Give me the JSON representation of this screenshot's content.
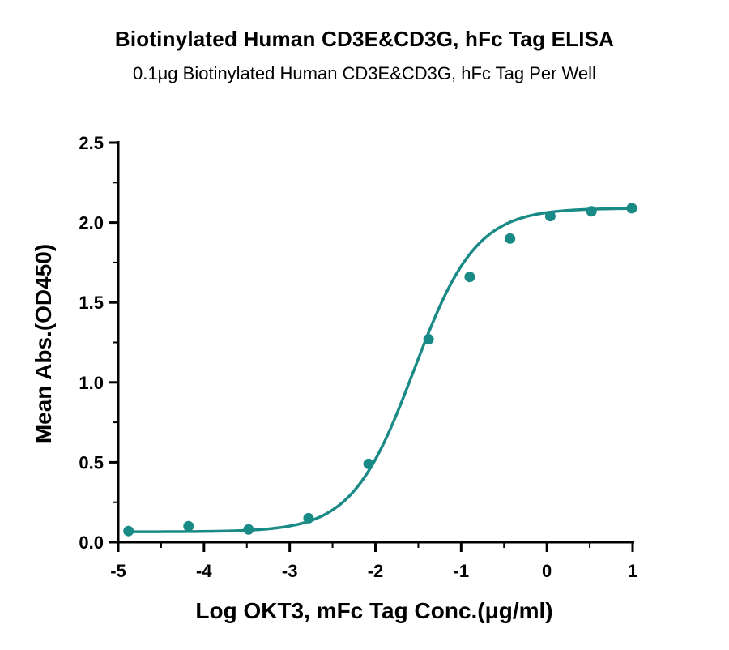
{
  "chart_data": {
    "type": "scatter",
    "title": "Biotinylated Human CD3E&CD3G, hFc Tag ELISA",
    "subtitle": "0.1μg Biotinylated Human CD3E&CD3G, hFc Tag Per Well",
    "xlabel": "Log OKT3, mFc Tag Conc.(μg/ml)",
    "ylabel": "Mean Abs.(OD450)",
    "xlim": [
      -5,
      1
    ],
    "ylim": [
      0,
      2.5
    ],
    "xticks": [
      "-5",
      "-4",
      "-3",
      "-2",
      "-1",
      "0",
      "1"
    ],
    "yticks": [
      "0.0",
      "0.5",
      "1.0",
      "1.5",
      "2.0",
      "2.5"
    ],
    "grid": false,
    "color": "#1a8a86",
    "series": [
      {
        "x": [
          -4.88,
          -4.18,
          -3.48,
          -2.78,
          -2.08,
          -1.38,
          -0.9,
          -0.43,
          0.04,
          0.52,
          0.99
        ],
        "values": [
          0.07,
          0.1,
          0.08,
          0.15,
          0.49,
          1.27,
          1.66,
          1.9,
          2.04,
          2.07,
          2.09
        ],
        "fit": {
          "model": "4PL",
          "bottom": 0.065,
          "top": 2.09,
          "logEC50": -1.55,
          "hill": 1.2
        }
      }
    ]
  }
}
